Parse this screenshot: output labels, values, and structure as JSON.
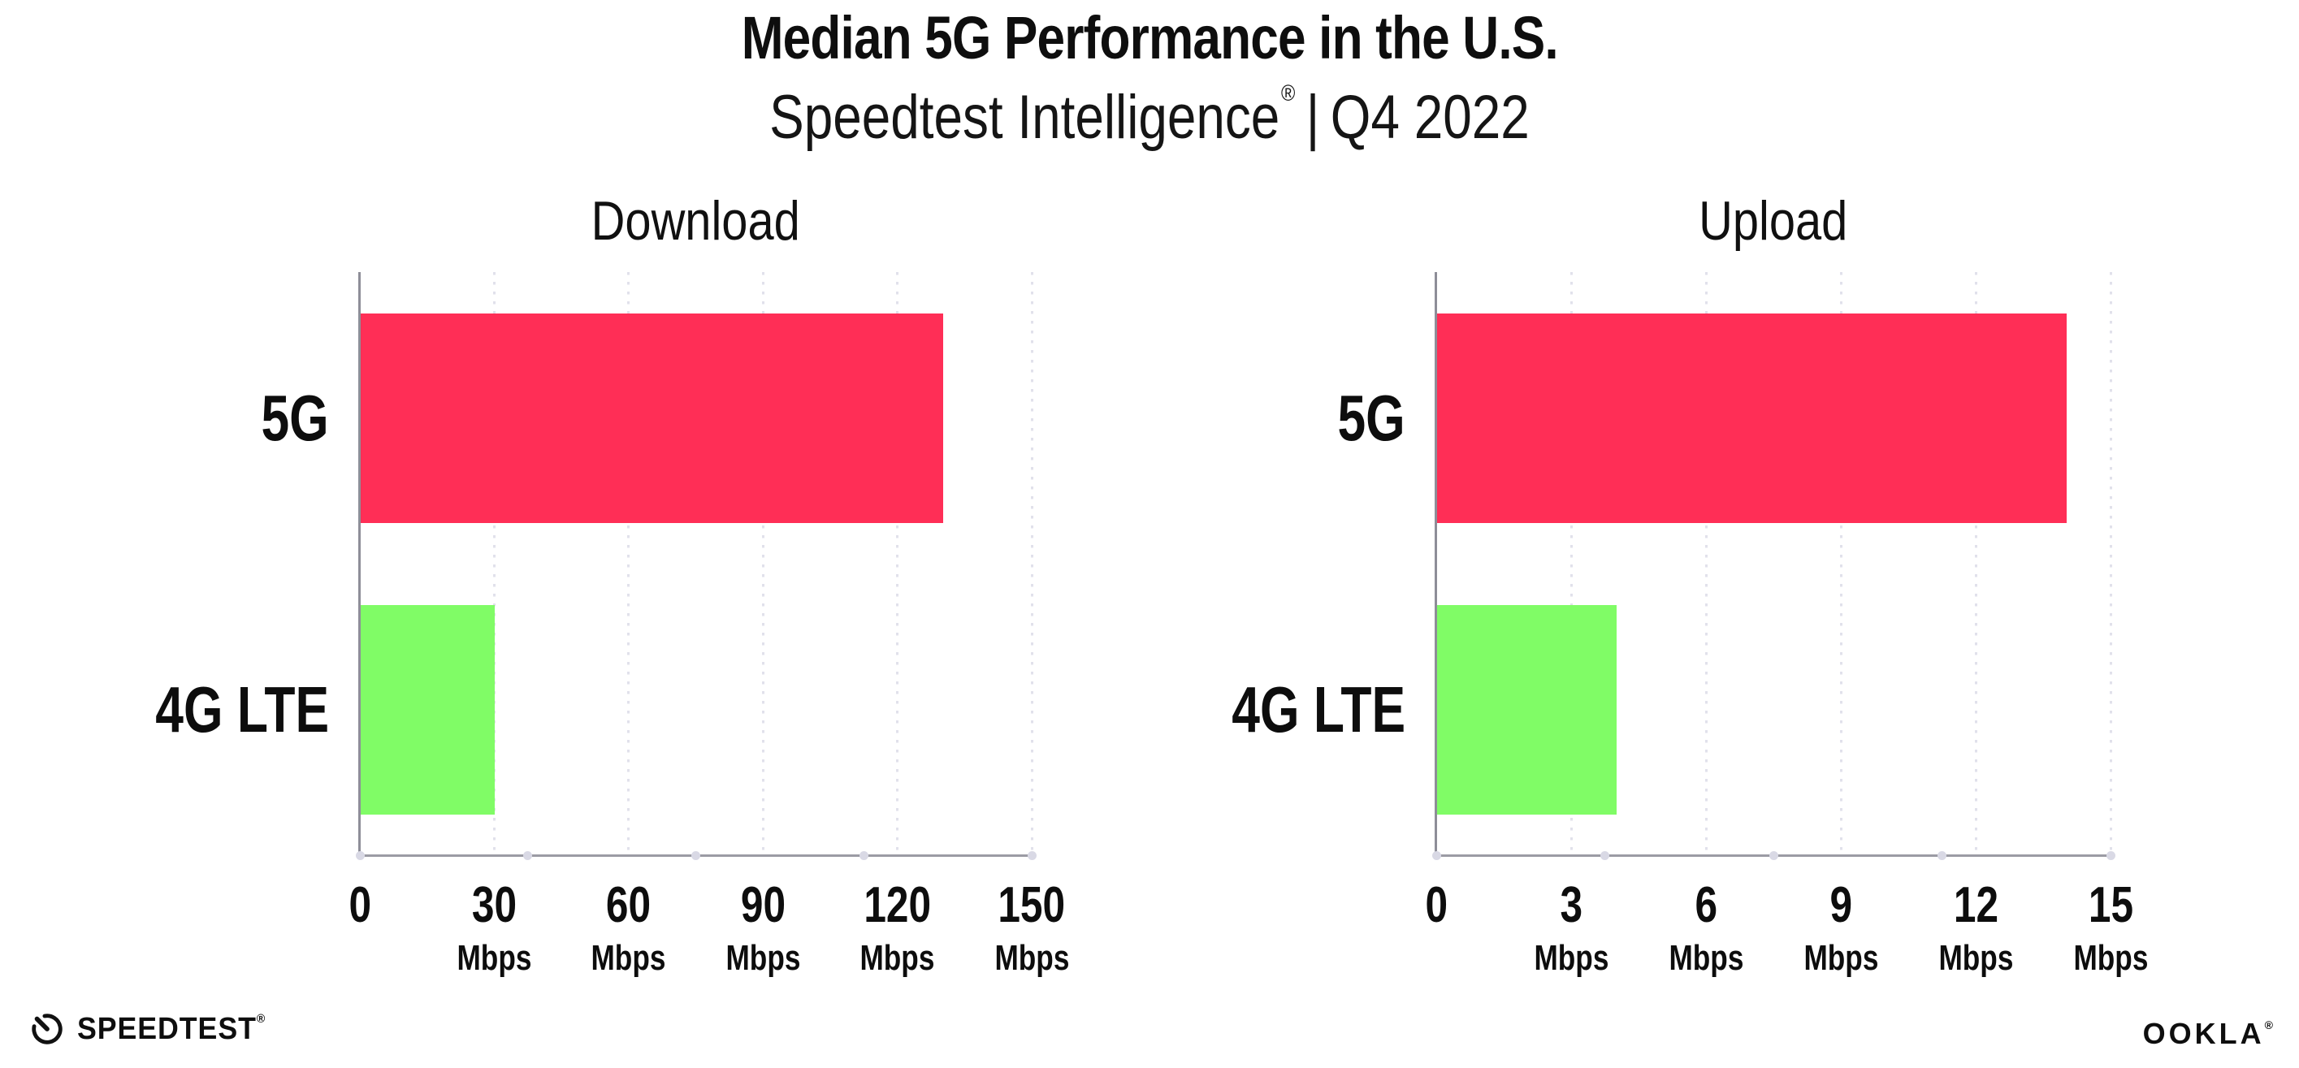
{
  "header": {
    "title": "Median 5G Performance in the U.S.",
    "subtitle_brand": "Speedtest Intelligence",
    "subtitle_reg": "®",
    "subtitle_sep": "|",
    "subtitle_period": "Q4 2022"
  },
  "colors": {
    "bar_5g_pink": "#FF2E56",
    "bar_4g_green": "#80FC66",
    "gridline": "#E1E1EB",
    "axis": "#9B9BA4",
    "axis_dot": "#D9D9E5",
    "text": "#0E0E0E"
  },
  "chart_data": [
    {
      "type": "bar",
      "orientation": "horizontal",
      "title": "Download",
      "categories": [
        "5G",
        "4G LTE"
      ],
      "values": [
        130,
        30
      ],
      "unit": "Mbps",
      "xlabel": "",
      "ylabel": "",
      "xlim": [
        0,
        150
      ],
      "xticks": [
        0,
        30,
        60,
        90,
        120,
        150
      ],
      "bar_colors": [
        "#FF2E56",
        "#80FC66"
      ],
      "grid": "vertical-dotted",
      "legend_position": "none"
    },
    {
      "type": "bar",
      "orientation": "horizontal",
      "title": "Upload",
      "categories": [
        "5G",
        "4G LTE"
      ],
      "values": [
        14,
        4
      ],
      "unit": "Mbps",
      "xlabel": "",
      "ylabel": "",
      "xlim": [
        0,
        15
      ],
      "xticks": [
        0,
        3,
        6,
        9,
        12,
        15
      ],
      "bar_colors": [
        "#FF2E56",
        "#80FC66"
      ],
      "grid": "vertical-dotted",
      "legend_position": "none"
    }
  ],
  "footer": {
    "speedtest_label": "SPEEDTEST",
    "speedtest_reg": "®",
    "speedtest_icon": "speedtest-gauge-icon",
    "ookla_label": "OOKLA",
    "ookla_reg": "®"
  }
}
